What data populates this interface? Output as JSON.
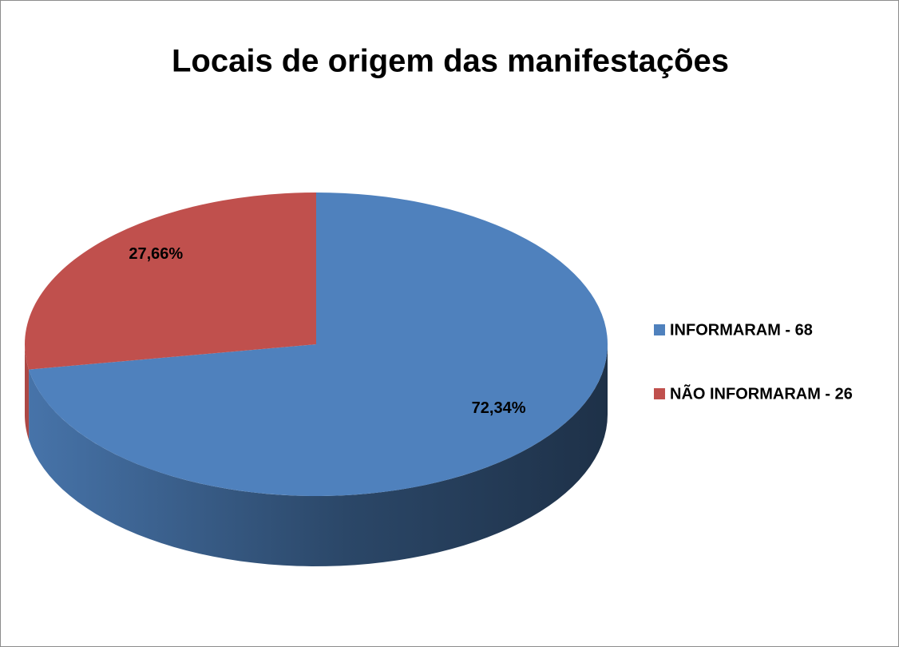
{
  "chart_data": {
    "type": "pie",
    "title": "Locais de origem das manifestações",
    "categories": [
      "INFORMARAM - 68",
      "NÃO INFORMARAM - 26"
    ],
    "values": [
      72.34,
      27.66
    ],
    "value_labels": [
      "72,34%",
      "27,66%"
    ],
    "colors": [
      "#4f81bd",
      "#c0504d"
    ],
    "legend": "right"
  }
}
